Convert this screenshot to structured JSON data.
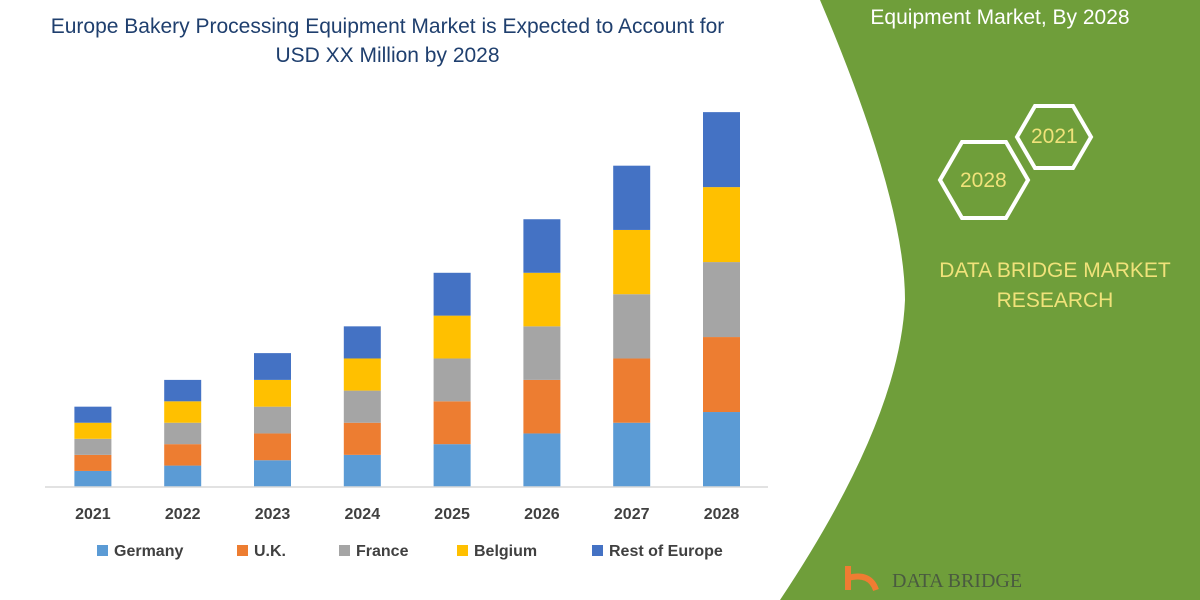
{
  "chart_data": {
    "type": "bar",
    "stacked": true,
    "title": "Europe Bakery Processing Equipment Market is Expected to Account for USD XX Million by 2028",
    "categories": [
      "2021",
      "2022",
      "2023",
      "2024",
      "2025",
      "2026",
      "2027",
      "2028"
    ],
    "series": [
      {
        "name": "Germany",
        "color": "#5b9bd5",
        "values": [
          15,
          20,
          25,
          30,
          40,
          50,
          60,
          70
        ]
      },
      {
        "name": "U.K.",
        "color": "#ed7d31",
        "values": [
          15,
          20,
          25,
          30,
          40,
          50,
          60,
          70
        ]
      },
      {
        "name": "France",
        "color": "#a5a5a5",
        "values": [
          15,
          20,
          25,
          30,
          40,
          50,
          60,
          70
        ]
      },
      {
        "name": "Belgium",
        "color": "#ffc000",
        "values": [
          15,
          20,
          25,
          30,
          40,
          50,
          60,
          70
        ]
      },
      {
        "name": "Rest of Europe",
        "color": "#4472c4",
        "values": [
          15,
          20,
          25,
          30,
          40,
          50,
          60,
          70
        ]
      }
    ],
    "ylim": [
      0,
      380
    ],
    "grid": false,
    "legend": "bottom"
  },
  "side": {
    "title": "Equipment Market, By 2028",
    "hex1": "2021",
    "hex2": "2028",
    "brand": "DATA BRIDGE MARKET RESEARCH",
    "logo": "DATA BRIDGE"
  },
  "colors": {
    "panel": "#6f9e3a",
    "accent": "#f0e27a"
  }
}
